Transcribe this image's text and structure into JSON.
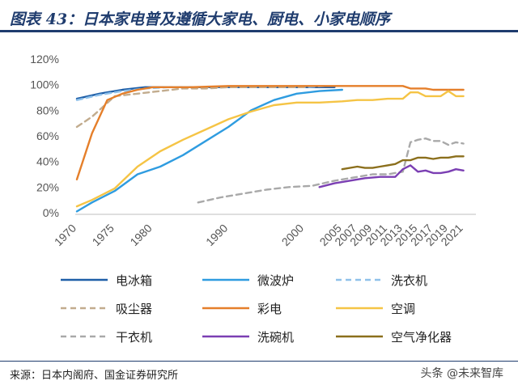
{
  "header": {
    "title": "图表 43：日本家电普及遵循大家电、厨电、小家电顺序"
  },
  "footer": {
    "source": "来源：日本内阁府、国金证券研究所",
    "watermark": "头条 @未来智库"
  },
  "chart_data": {
    "type": "line",
    "ylim": [
      0,
      120
    ],
    "y_ticks": [
      "0%",
      "20%",
      "40%",
      "60%",
      "80%",
      "100%",
      "120%"
    ],
    "x_range": [
      1970,
      2022
    ],
    "x_ticks": [
      1970,
      1975,
      1980,
      1990,
      2000,
      2005,
      2007,
      2009,
      2011,
      2013,
      2015,
      2017,
      2019,
      2021
    ],
    "x_tick_labels": [
      "1970",
      "1975",
      "1980",
      "1990",
      "2000",
      "2005",
      "2007",
      "2009",
      "2011",
      "2013",
      "2015",
      "2017",
      "2019",
      "2021"
    ],
    "series": [
      {
        "name": "电冰箱",
        "color": "#1f5fa8",
        "dash": "solid",
        "x": [
          1970,
          1973,
          1976,
          1979,
          1982,
          1985,
          1990,
          1995,
          2000,
          2004
        ],
        "y": [
          89,
          93,
          96,
          98,
          98,
          98,
          98,
          98,
          98,
          98
        ]
      },
      {
        "name": "微波炉",
        "color": "#2f9ce0",
        "dash": "solid",
        "x": [
          1970,
          1972,
          1975,
          1978,
          1981,
          1984,
          1987,
          1990,
          1993,
          1996,
          1999,
          2002,
          2005
        ],
        "y": [
          1,
          8,
          17,
          30,
          36,
          45,
          56,
          67,
          80,
          88,
          93,
          95,
          96
        ]
      },
      {
        "name": "洗衣机",
        "color": "#8fc1ea",
        "dash": "dashed",
        "x": [
          1970,
          1973,
          1976,
          1979,
          1982,
          1985,
          1990,
          1995,
          2000,
          2003
        ],
        "y": [
          88,
          92,
          95,
          97,
          98,
          98,
          98,
          98,
          98,
          99
        ]
      },
      {
        "name": "吸尘器",
        "color": "#c2ac8e",
        "dash": "dashed",
        "x": [
          1970,
          1972,
          1975,
          1978,
          1981,
          1984,
          1987,
          1990,
          1995,
          2000
        ],
        "y": [
          67,
          75,
          91,
          93,
          95,
          97,
          97,
          98,
          98,
          98
        ]
      },
      {
        "name": "彩电",
        "color": "#e57f2a",
        "dash": "solid",
        "x": [
          1970,
          1972,
          1974,
          1976,
          1978,
          1980,
          1985,
          1990,
          1995,
          2000,
          2005,
          2008,
          2011,
          2013,
          2014,
          2015,
          2016,
          2017,
          2018,
          2019,
          2020,
          2021
        ],
        "y": [
          26,
          62,
          88,
          93,
          96,
          98,
          98,
          99,
          99,
          99,
          99,
          99,
          99,
          99,
          97,
          97,
          97,
          96,
          96,
          96,
          96,
          96
        ]
      },
      {
        "name": "空调",
        "color": "#f5c445",
        "dash": "solid",
        "x": [
          1970,
          1972,
          1975,
          1978,
          1981,
          1984,
          1987,
          1990,
          1993,
          1996,
          1999,
          2002,
          2005,
          2007,
          2009,
          2011,
          2013,
          2014,
          2015,
          2016,
          2017,
          2018,
          2019,
          2020,
          2021
        ],
        "y": [
          5,
          10,
          19,
          36,
          48,
          57,
          65,
          73,
          79,
          84,
          86,
          86,
          87,
          88,
          88,
          89,
          89,
          94,
          94,
          91,
          91,
          91,
          95,
          91,
          91
        ]
      },
      {
        "name": "干衣机",
        "color": "#a9a9a9",
        "dash": "dashed",
        "x": [
          1986,
          1989,
          1992,
          1995,
          1998,
          2001,
          2004,
          2007,
          2009,
          2011,
          2013,
          2014,
          2015,
          2016,
          2017,
          2018,
          2019,
          2020,
          2021
        ],
        "y": [
          8,
          12,
          15,
          18,
          20,
          21,
          25,
          28,
          30,
          30,
          32,
          55,
          57,
          58,
          56,
          56,
          53,
          55,
          54
        ]
      },
      {
        "name": "洗碗机",
        "color": "#7b3fb3",
        "dash": "solid",
        "x": [
          2002,
          2004,
          2006,
          2008,
          2010,
          2012,
          2013,
          2014,
          2015,
          2016,
          2017,
          2018,
          2019,
          2020,
          2021
        ],
        "y": [
          20,
          23,
          25,
          27,
          28,
          28,
          34,
          37,
          32,
          33,
          31,
          31,
          32,
          34,
          33
        ]
      },
      {
        "name": "空气净化器",
        "color": "#8b6f1c",
        "dash": "solid",
        "x": [
          2005,
          2007,
          2008,
          2009,
          2010,
          2011,
          2012,
          2013,
          2014,
          2015,
          2016,
          2017,
          2018,
          2019,
          2020,
          2021
        ],
        "y": [
          34,
          36,
          35,
          35,
          36,
          37,
          38,
          41,
          41,
          43,
          43,
          42,
          43,
          43,
          44,
          44
        ]
      }
    ]
  }
}
